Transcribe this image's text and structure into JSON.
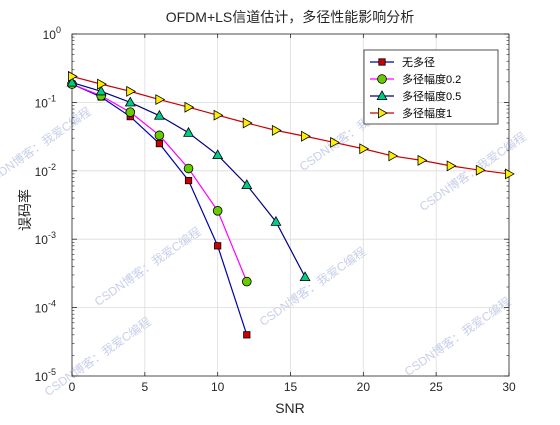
{
  "chart_data": {
    "type": "line",
    "title": "OFDM+LS信道估计，多径性能影响分析",
    "xlabel": "SNR",
    "ylabel": "误码率",
    "xlim": [
      0,
      30
    ],
    "ylim": [
      1e-05,
      1
    ],
    "yscale": "log",
    "grid": true,
    "legend_position": "top-right",
    "x_ticks": [
      0,
      5,
      10,
      15,
      20,
      25,
      30
    ],
    "x_tick_labels": [
      "0",
      "5",
      "10",
      "15",
      "20",
      "25",
      "30"
    ],
    "y_tick_exponents": [
      0,
      -1,
      -2,
      -3,
      -4,
      -5
    ],
    "y_tick_base": "10",
    "series": [
      {
        "name": "无多径",
        "color": "#0000aa",
        "marker": "square",
        "marker_fill": "#cc0000",
        "x": [
          0,
          2,
          4,
          6,
          8,
          10,
          12
        ],
        "y": [
          0.185,
          0.12,
          0.062,
          0.025,
          0.0072,
          0.0008,
          4e-05
        ]
      },
      {
        "name": "多径幅度0.2",
        "color": "#ff00ff",
        "marker": "circle",
        "marker_fill": "#66cc00",
        "x": [
          0,
          2,
          4,
          6,
          8,
          10,
          12
        ],
        "y": [
          0.185,
          0.125,
          0.072,
          0.033,
          0.0108,
          0.0026,
          0.00024
        ]
      },
      {
        "name": "多径幅度0.5",
        "color": "#000080",
        "marker": "triangle-up",
        "marker_fill": "#00cc88",
        "x": [
          0,
          2,
          4,
          6,
          8,
          10,
          12,
          14,
          16
        ],
        "y": [
          0.195,
          0.145,
          0.1,
          0.064,
          0.036,
          0.017,
          0.0062,
          0.0018,
          0.00028
        ]
      },
      {
        "name": "多径幅度1",
        "color": "#cc0000",
        "marker": "triangle-right",
        "marker_fill": "#ffee00",
        "x": [
          0,
          2,
          4,
          6,
          8,
          10,
          12,
          14,
          16,
          18,
          20,
          22,
          24,
          26,
          28,
          30
        ],
        "y": [
          0.24,
          0.185,
          0.145,
          0.11,
          0.085,
          0.065,
          0.05,
          0.039,
          0.032,
          0.026,
          0.021,
          0.0165,
          0.0142,
          0.0118,
          0.0102,
          0.009
        ]
      }
    ]
  },
  "watermark": "CSDN博客：我爱C编程"
}
